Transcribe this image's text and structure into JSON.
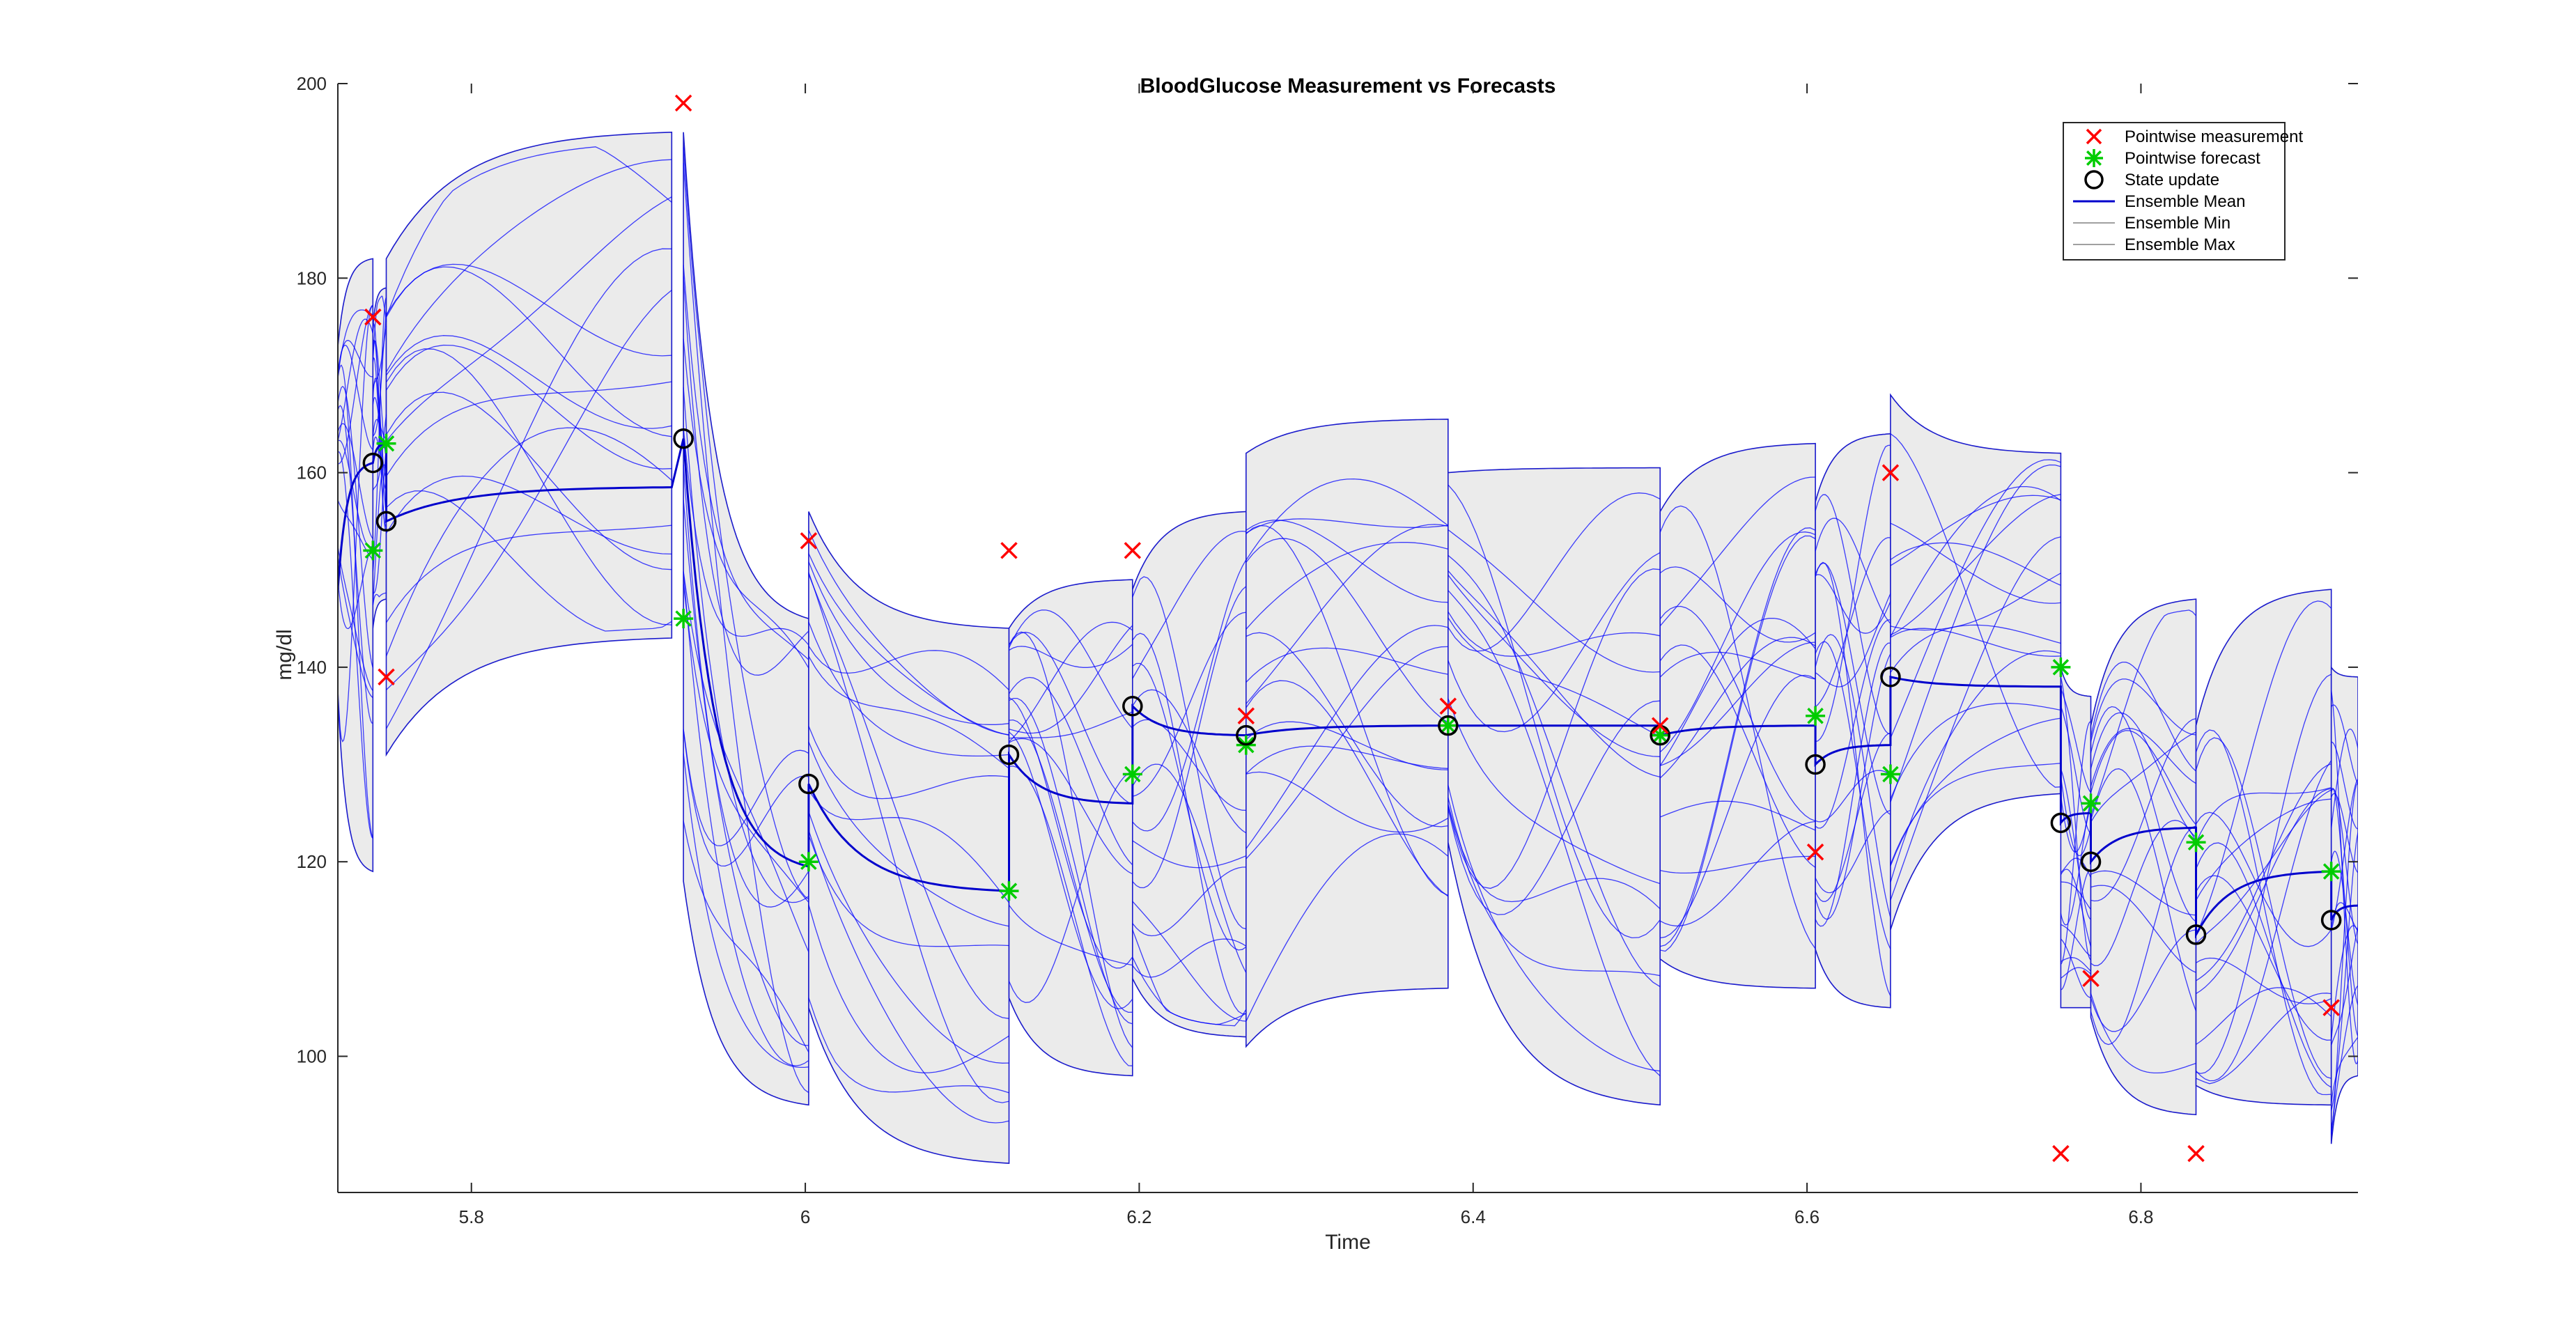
{
  "chart_data": {
    "type": "line",
    "title": "BloodGlucose Measurement vs Forecasts",
    "xlabel": "Time",
    "ylabel": "mg/dl",
    "xlim": [
      5.72,
      6.93
    ],
    "ylim": [
      86,
      200
    ],
    "xticks": [
      5.8,
      6,
      6.2,
      6.4,
      6.6,
      6.8
    ],
    "xtick_labels": [
      "5.8",
      "6",
      "6.2",
      "6.4",
      "6.6",
      "6.8"
    ],
    "yticks": [
      100,
      120,
      140,
      160,
      180,
      200
    ],
    "ytick_labels": [
      "100",
      "120",
      "140",
      "160",
      "180",
      "200"
    ],
    "legend": {
      "location": "top-right",
      "entries": [
        {
          "label": "Pointwise measurement",
          "marker": "x",
          "color": "#ff0000"
        },
        {
          "label": "Pointwise forecast",
          "marker": "*",
          "color": "#00cc00"
        },
        {
          "label": "State update",
          "marker": "o",
          "color": "#000000"
        },
        {
          "label": "Ensemble Mean",
          "line": "solid",
          "color": "#0000cc"
        },
        {
          "label": "Ensemble Min",
          "line": "solid",
          "color": "#808080"
        },
        {
          "label": "Ensemble Max",
          "line": "solid",
          "color": "#808080"
        }
      ]
    },
    "colors": {
      "measurement": "#ff0000",
      "forecast": "#00cc00",
      "state_update": "#000000",
      "ensemble_mean": "#0000cc",
      "ensemble_members": "#0000ff",
      "envelope_fill": "#ebebeb",
      "envelope_edge": "#1a1acc"
    },
    "series": [
      {
        "name": "Pointwise measurement",
        "marker": "x",
        "points": [
          [
            5.741,
            176
          ],
          [
            5.749,
            139
          ],
          [
            5.927,
            198
          ],
          [
            6.002,
            153
          ],
          [
            6.122,
            152
          ],
          [
            6.196,
            152
          ],
          [
            6.264,
            135
          ],
          [
            6.385,
            136
          ],
          [
            6.512,
            134
          ],
          [
            6.605,
            121
          ],
          [
            6.65,
            160
          ],
          [
            6.752,
            90
          ],
          [
            6.77,
            108
          ],
          [
            6.833,
            90
          ],
          [
            6.914,
            105
          ]
        ]
      },
      {
        "name": "Pointwise forecast",
        "marker": "*",
        "points": [
          [
            5.741,
            152
          ],
          [
            5.749,
            163
          ],
          [
            5.927,
            145
          ],
          [
            6.002,
            120
          ],
          [
            6.122,
            117
          ],
          [
            6.196,
            129
          ],
          [
            6.264,
            132
          ],
          [
            6.385,
            134
          ],
          [
            6.512,
            133
          ],
          [
            6.605,
            135
          ],
          [
            6.65,
            129
          ],
          [
            6.752,
            140
          ],
          [
            6.77,
            126
          ],
          [
            6.833,
            122
          ],
          [
            6.914,
            119
          ]
        ]
      },
      {
        "name": "State update",
        "marker": "o",
        "points": [
          [
            5.741,
            161
          ],
          [
            5.749,
            155
          ],
          [
            5.927,
            163.5
          ],
          [
            6.002,
            128
          ],
          [
            6.122,
            131
          ],
          [
            6.196,
            136
          ],
          [
            6.264,
            133
          ],
          [
            6.385,
            134
          ],
          [
            6.512,
            133
          ],
          [
            6.605,
            130
          ],
          [
            6.65,
            139
          ],
          [
            6.752,
            124
          ],
          [
            6.77,
            120
          ],
          [
            6.833,
            112.5
          ],
          [
            6.914,
            114
          ]
        ]
      },
      {
        "name": "Ensemble Mean",
        "segments": [
          {
            "t0": 5.72,
            "t1": 5.741,
            "y0": 148,
            "y1": 161
          },
          {
            "t0": 5.741,
            "t1": 5.749,
            "y0": 161,
            "y1": 163
          },
          {
            "t0": 5.749,
            "t1": 5.92,
            "y0": 155,
            "y1": 158.5
          },
          {
            "t0": 5.927,
            "t1": 6.002,
            "y0": 163.5,
            "y1": 119.5
          },
          {
            "t0": 6.002,
            "t1": 6.122,
            "y0": 128,
            "y1": 117
          },
          {
            "t0": 6.122,
            "t1": 6.196,
            "y0": 131,
            "y1": 126
          },
          {
            "t0": 6.196,
            "t1": 6.264,
            "y0": 136,
            "y1": 133
          },
          {
            "t0": 6.264,
            "t1": 6.385,
            "y0": 133,
            "y1": 134
          },
          {
            "t0": 6.385,
            "t1": 6.512,
            "y0": 134,
            "y1": 134
          },
          {
            "t0": 6.512,
            "t1": 6.605,
            "y0": 133,
            "y1": 134
          },
          {
            "t0": 6.605,
            "t1": 6.65,
            "y0": 130,
            "y1": 132
          },
          {
            "t0": 6.65,
            "t1": 6.752,
            "y0": 139,
            "y1": 138
          },
          {
            "t0": 6.752,
            "t1": 6.77,
            "y0": 124,
            "y1": 125
          },
          {
            "t0": 6.77,
            "t1": 6.833,
            "y0": 120,
            "y1": 123.5
          },
          {
            "t0": 6.833,
            "t1": 6.914,
            "y0": 112.5,
            "y1": 119
          },
          {
            "t0": 6.914,
            "t1": 6.93,
            "y0": 114,
            "y1": 115.5
          }
        ]
      },
      {
        "name": "Ensemble Min / Max",
        "segments": [
          {
            "t0": 5.72,
            "t1": 5.741,
            "min": [
              137,
              119
            ],
            "max": [
              173,
              182
            ]
          },
          {
            "t0": 5.741,
            "t1": 5.749,
            "min": [
              144,
              147
            ],
            "max": [
              175,
              179
            ]
          },
          {
            "t0": 5.749,
            "t1": 5.92,
            "min": [
              131,
              143
            ],
            "max": [
              182,
              195
            ]
          },
          {
            "t0": 5.927,
            "t1": 6.002,
            "min": [
              118,
              95
            ],
            "max": [
              195,
              145
            ]
          },
          {
            "t0": 6.002,
            "t1": 6.122,
            "min": [
              105,
              89
            ],
            "max": [
              156,
              144
            ]
          },
          {
            "t0": 6.122,
            "t1": 6.196,
            "min": [
              106,
              98
            ],
            "max": [
              144,
              149
            ]
          },
          {
            "t0": 6.196,
            "t1": 6.264,
            "min": [
              108,
              102
            ],
            "max": [
              148,
              156
            ]
          },
          {
            "t0": 6.264,
            "t1": 6.385,
            "min": [
              101,
              107
            ],
            "max": [
              162,
              165.5
            ]
          },
          {
            "t0": 6.385,
            "t1": 6.512,
            "min": [
              122,
              95
            ],
            "max": [
              160,
              160.5
            ]
          },
          {
            "t0": 6.512,
            "t1": 6.605,
            "min": [
              110,
              107
            ],
            "max": [
              156,
              163
            ]
          },
          {
            "t0": 6.605,
            "t1": 6.65,
            "min": [
              111,
              105
            ],
            "max": [
              157,
              164
            ]
          },
          {
            "t0": 6.65,
            "t1": 6.752,
            "min": [
              113,
              127
            ],
            "max": [
              168,
              162
            ]
          },
          {
            "t0": 6.752,
            "t1": 6.77,
            "min": [
              105,
              105
            ],
            "max": [
              140,
              137
            ]
          },
          {
            "t0": 6.77,
            "t1": 6.833,
            "min": [
              104,
              94
            ],
            "max": [
              134,
              147
            ]
          },
          {
            "t0": 6.833,
            "t1": 6.914,
            "min": [
              97,
              95
            ],
            "max": [
              134,
              148
            ]
          },
          {
            "t0": 6.914,
            "t1": 6.93,
            "min": [
              91,
              98
            ],
            "max": [
              140,
              139
            ]
          }
        ]
      }
    ]
  }
}
